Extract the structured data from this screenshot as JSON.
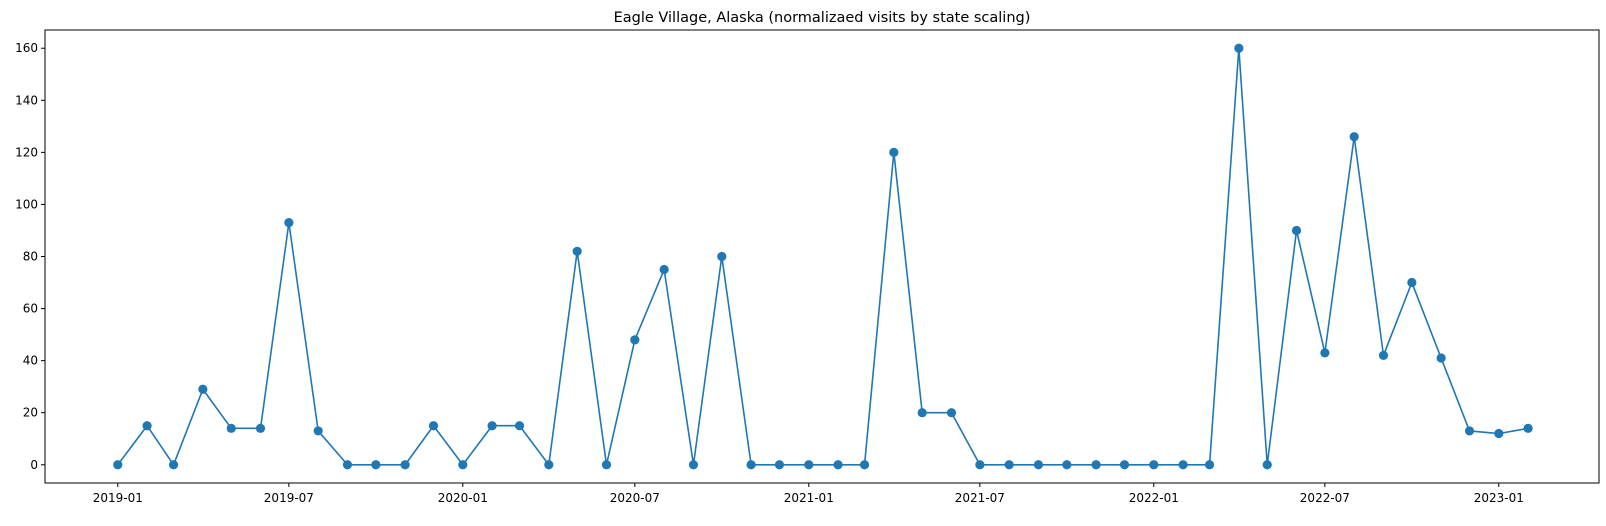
{
  "chart_data": {
    "type": "line",
    "title": "Eagle Village, Alaska (normalizaed visits by state scaling)",
    "xlabel": "",
    "ylabel": "",
    "marker": "circle",
    "color": "#1f77b4",
    "grid": false,
    "x_ticks": [
      "2019-01",
      "2019-07",
      "2020-01",
      "2020-07",
      "2021-01",
      "2021-07",
      "2022-01",
      "2022-07",
      "2023-01"
    ],
    "y_ticks": [
      "0",
      "20",
      "40",
      "60",
      "80",
      "100",
      "120",
      "140",
      "160"
    ],
    "ylim": [
      -7,
      167
    ],
    "xlim": [
      "2018-10-16",
      "2023-04-17"
    ],
    "x": [
      "2019-01-01",
      "2019-02-01",
      "2019-03-01",
      "2019-04-01",
      "2019-05-01",
      "2019-06-01",
      "2019-07-01",
      "2019-08-01",
      "2019-09-01",
      "2019-10-01",
      "2019-11-01",
      "2019-12-01",
      "2020-01-01",
      "2020-02-01",
      "2020-03-01",
      "2020-04-01",
      "2020-05-01",
      "2020-06-01",
      "2020-07-01",
      "2020-08-01",
      "2020-09-01",
      "2020-10-01",
      "2020-11-01",
      "2020-12-01",
      "2021-01-01",
      "2021-02-01",
      "2021-03-01",
      "2021-04-01",
      "2021-05-01",
      "2021-06-01",
      "2021-07-01",
      "2021-08-01",
      "2021-09-01",
      "2021-10-01",
      "2021-11-01",
      "2021-12-01",
      "2022-01-01",
      "2022-02-01",
      "2022-03-01",
      "2022-04-01",
      "2022-05-01",
      "2022-06-01",
      "2022-07-01",
      "2022-08-01",
      "2022-09-01",
      "2022-10-01",
      "2022-11-01",
      "2022-12-01",
      "2023-01-01",
      "2023-02-01"
    ],
    "values": [
      0,
      15,
      0,
      29,
      14,
      14,
      93,
      13,
      0,
      0,
      0,
      15,
      0,
      15,
      15,
      0,
      82,
      0,
      48,
      75,
      0,
      80,
      0,
      0,
      0,
      0,
      0,
      120,
      20,
      20,
      0,
      0,
      0,
      0,
      0,
      0,
      0,
      0,
      0,
      160,
      0,
      90,
      43,
      126,
      42,
      70,
      41,
      13,
      12,
      14
    ]
  }
}
